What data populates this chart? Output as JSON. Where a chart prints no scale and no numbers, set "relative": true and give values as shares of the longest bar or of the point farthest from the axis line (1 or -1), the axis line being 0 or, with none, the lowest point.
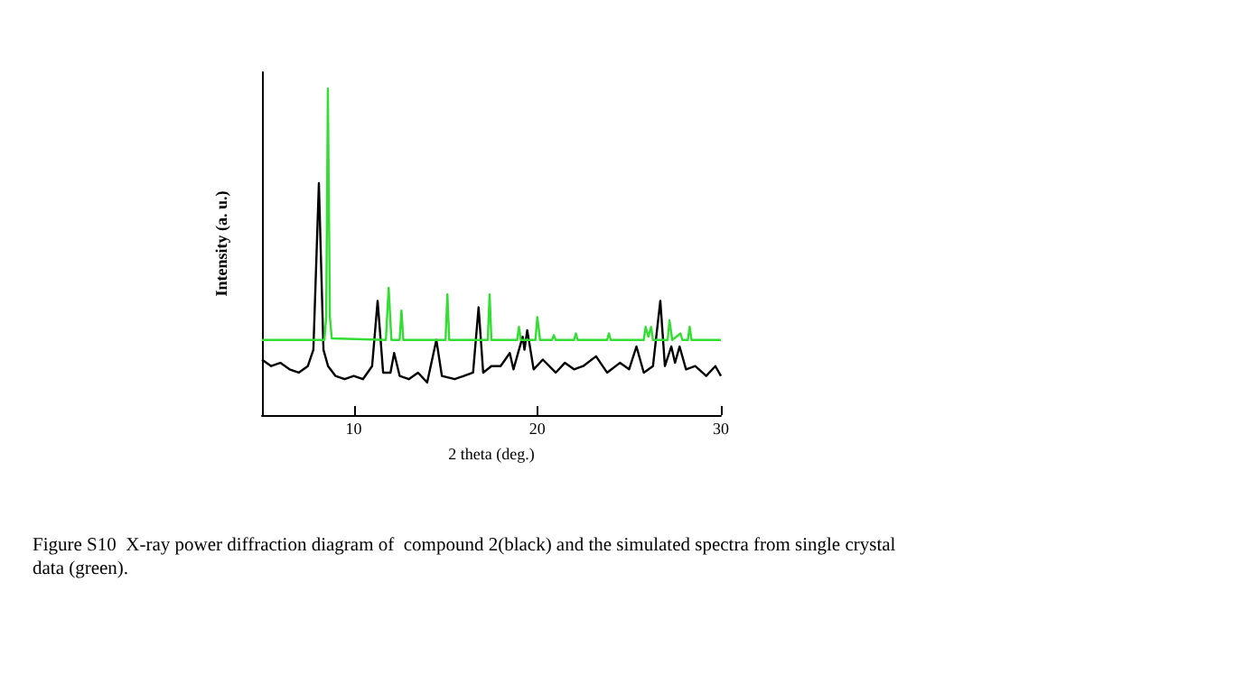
{
  "chart_data": {
    "type": "line",
    "relative": true,
    "xlabel": "2 theta (deg.)",
    "ylabel": "Intensity (a. u.)",
    "xlim": [
      5,
      30
    ],
    "xticks": [
      10,
      20,
      30
    ],
    "annotations": [
      "Figure S10  X-ray power diffraction diagram of  compound 2(black) and the simulated spectra from single crystal data (green)."
    ],
    "series": [
      {
        "color": "#000000",
        "x": [
          5,
          5.5,
          6,
          6.5,
          7,
          7.5,
          7.8,
          8.1,
          8.35,
          8.6,
          9,
          9.5,
          10,
          10.5,
          11.0,
          11.3,
          11.6,
          12.0,
          12.2,
          12.5,
          13,
          13.5,
          14,
          14.5,
          14.8,
          15.5,
          16,
          16.5,
          16.8,
          17.05,
          17.5,
          18,
          18.5,
          18.7,
          19.2,
          19.3,
          19.45,
          19.8,
          20.3,
          21,
          21.5,
          22,
          22.5,
          23.2,
          23.8,
          24.5,
          25,
          25.4,
          25.8,
          26.3,
          26.7,
          26.95,
          27.3,
          27.5,
          27.75,
          28.1,
          28.6,
          29.2,
          29.7,
          30
        ],
        "values": [
          0.17,
          0.15,
          0.16,
          0.14,
          0.13,
          0.15,
          0.2,
          0.71,
          0.2,
          0.15,
          0.12,
          0.11,
          0.12,
          0.11,
          0.15,
          0.35,
          0.13,
          0.13,
          0.19,
          0.12,
          0.11,
          0.13,
          0.1,
          0.23,
          0.12,
          0.11,
          0.12,
          0.13,
          0.33,
          0.13,
          0.15,
          0.15,
          0.19,
          0.14,
          0.24,
          0.2,
          0.26,
          0.14,
          0.17,
          0.13,
          0.16,
          0.14,
          0.15,
          0.18,
          0.13,
          0.16,
          0.14,
          0.21,
          0.13,
          0.15,
          0.35,
          0.15,
          0.21,
          0.16,
          0.21,
          0.14,
          0.15,
          0.12,
          0.15,
          0.12
        ]
      },
      {
        "color": "#33dd33",
        "x": [
          5,
          8.4,
          8.5,
          8.59,
          8.7,
          8.8,
          11.75,
          11.9,
          12.05,
          12.5,
          12.6,
          12.7,
          15.0,
          15.1,
          15.2,
          17.3,
          17.4,
          17.5,
          18.9,
          19.0,
          19.1,
          19.9,
          20.0,
          20.15,
          20.8,
          20.9,
          21.0,
          22.0,
          22.1,
          22.2,
          23.8,
          23.9,
          24.0,
          25.8,
          25.9,
          26.05,
          26.2,
          26.3,
          27.1,
          27.2,
          27.35,
          27.8,
          27.9,
          28.2,
          28.3,
          28.4,
          30
        ],
        "values": [
          0.23,
          0.23,
          0.3,
          1.0,
          0.3,
          0.235,
          0.23,
          0.39,
          0.23,
          0.23,
          0.32,
          0.23,
          0.23,
          0.37,
          0.23,
          0.23,
          0.37,
          0.23,
          0.23,
          0.27,
          0.23,
          0.23,
          0.3,
          0.23,
          0.23,
          0.245,
          0.23,
          0.23,
          0.25,
          0.23,
          0.23,
          0.25,
          0.23,
          0.23,
          0.27,
          0.24,
          0.27,
          0.23,
          0.23,
          0.29,
          0.23,
          0.25,
          0.23,
          0.23,
          0.27,
          0.23,
          0.23
        ]
      }
    ]
  }
}
